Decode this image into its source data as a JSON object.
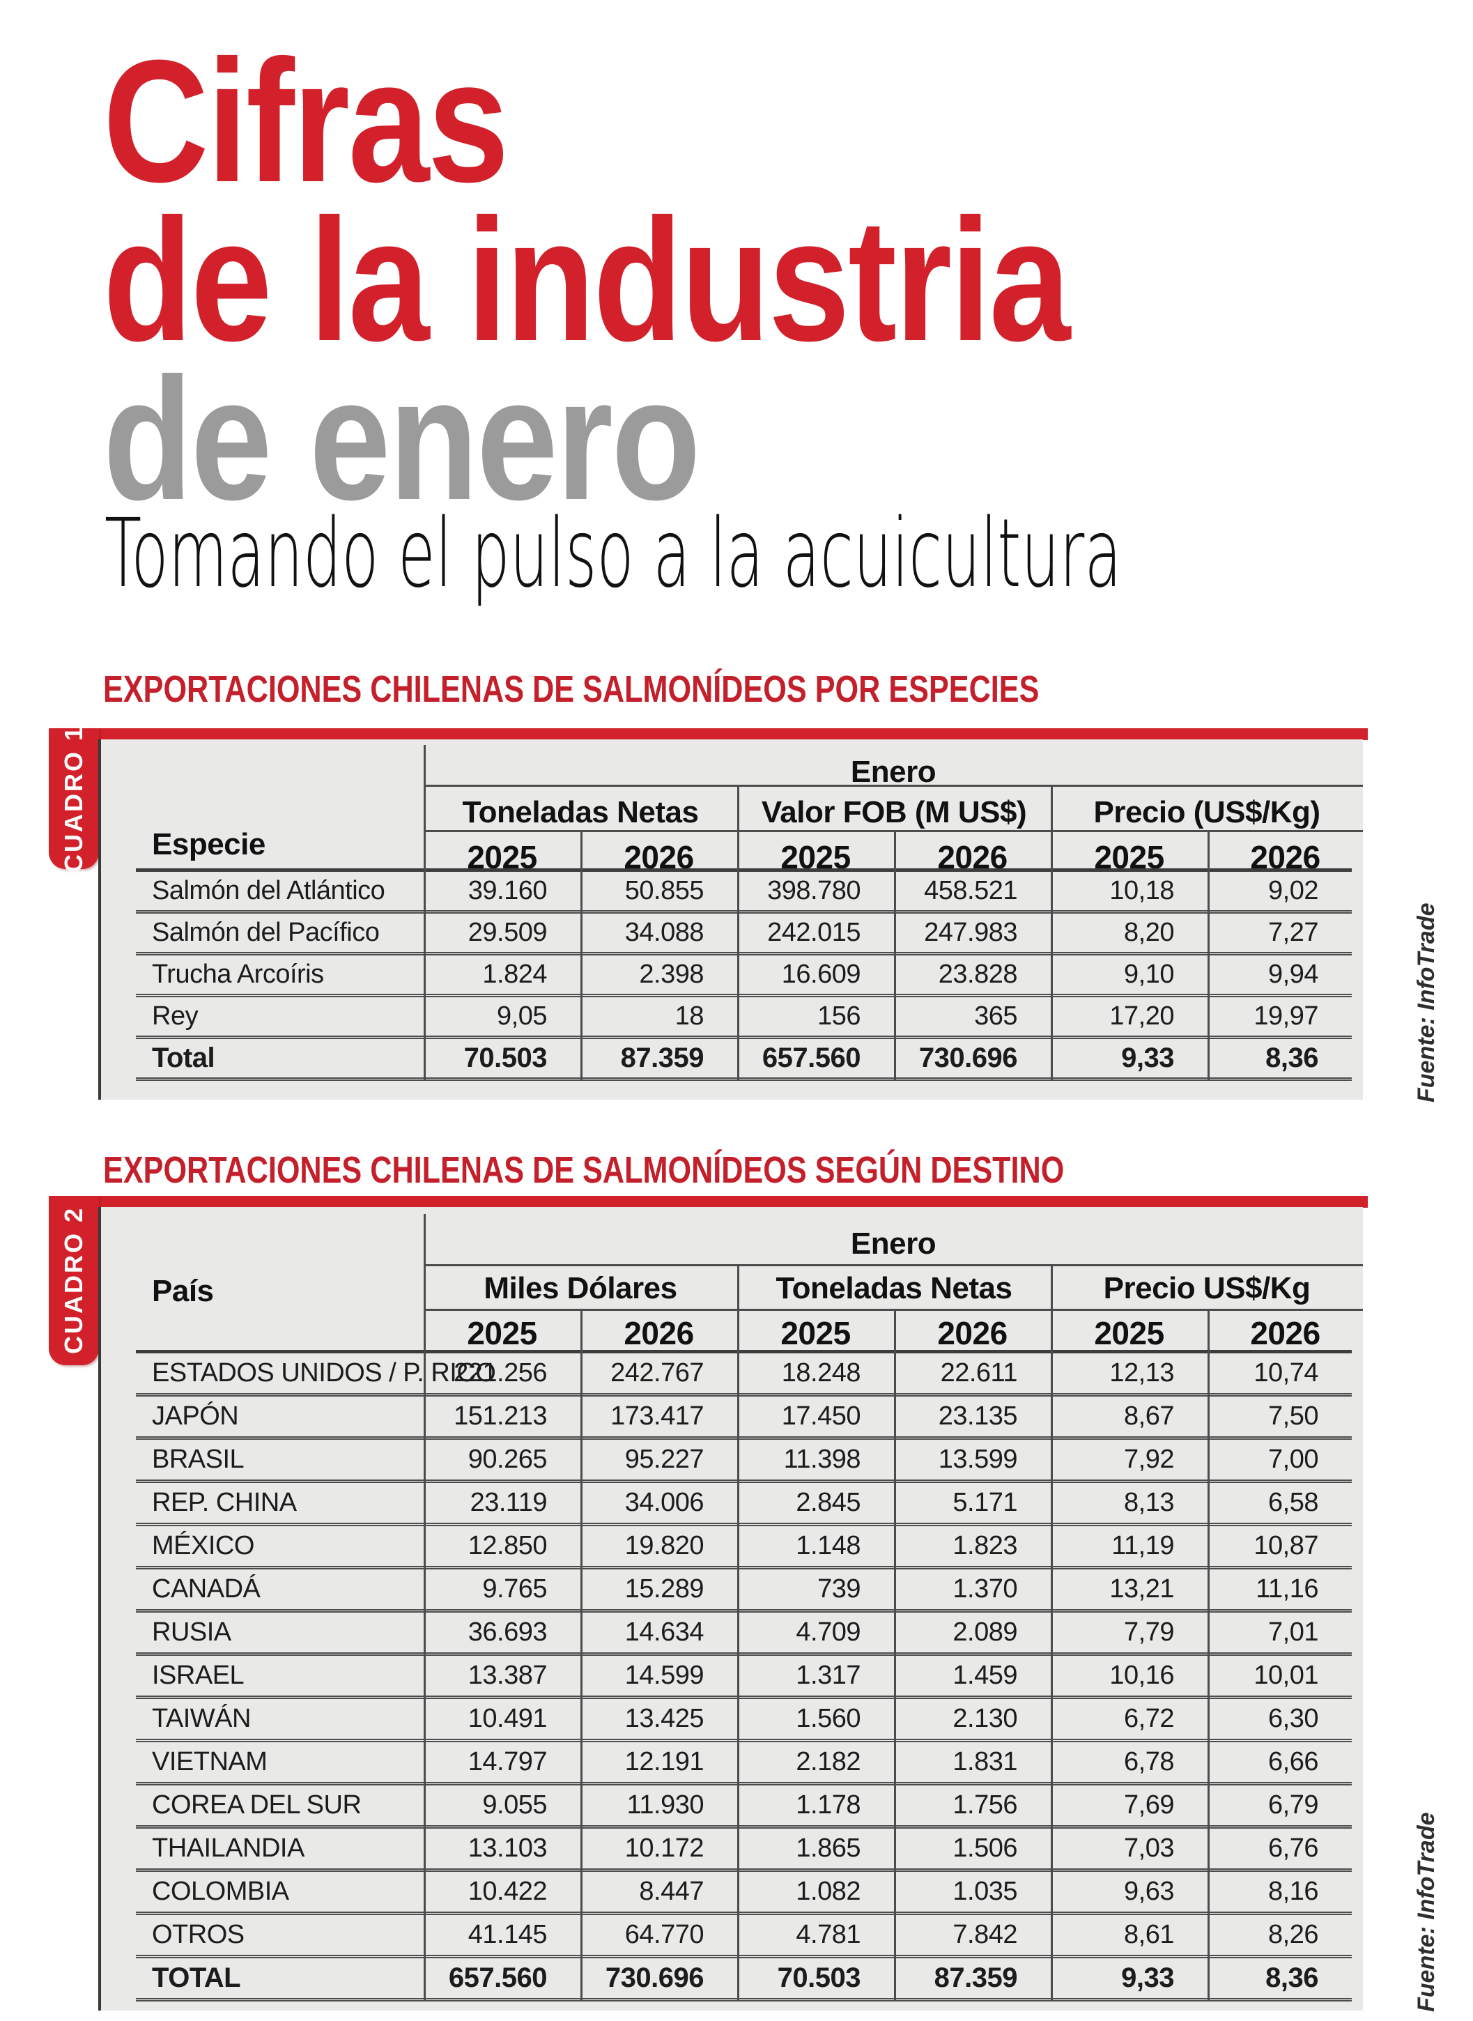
{
  "title": {
    "line1": "Cifras",
    "line2": "de la industria",
    "line3": "de enero",
    "subtitle": "Tomando el pulso a la acuicultura"
  },
  "colors": {
    "accent_red": "#d2212b",
    "title_gray": "#9b9b9b",
    "panel_gray": "#e9e9e8",
    "line_dark": "#4c4c4c"
  },
  "table1": {
    "section_title": "EXPORTACIONES CHILENAS DE SALMONÍDEOS POR ESPECIES",
    "tab_label": "CUADRO 1",
    "source_label": "Fuente: InfoTrade",
    "period_header": "Enero",
    "row_header": "Especie",
    "groups": [
      "Toneladas Netas",
      "Valor FOB (M US$)",
      "Precio (US$/Kg)"
    ],
    "years": [
      "2025",
      "2026",
      "2025",
      "2026",
      "2025",
      "2026"
    ],
    "rows": [
      {
        "label": "Salmón del Atlántico",
        "values": [
          "39.160",
          "50.855",
          "398.780",
          "458.521",
          "10,18",
          "9,02"
        ]
      },
      {
        "label": "Salmón del Pacífico",
        "values": [
          "29.509",
          "34.088",
          "242.015",
          "247.983",
          "8,20",
          "7,27"
        ]
      },
      {
        "label": "Trucha Arcoíris",
        "values": [
          "1.824",
          "2.398",
          "16.609",
          "23.828",
          "9,10",
          "9,94"
        ]
      },
      {
        "label": "Rey",
        "values": [
          "9,05",
          "18",
          "156",
          "365",
          "17,20",
          "19,97"
        ]
      },
      {
        "label": "Total",
        "values": [
          "70.503",
          "87.359",
          "657.560",
          "730.696",
          "9,33",
          "8,36"
        ]
      }
    ]
  },
  "table2": {
    "section_title": "EXPORTACIONES CHILENAS DE SALMONÍDEOS SEGÚN DESTINO",
    "tab_label": "CUADRO 2",
    "source_label": "Fuente: InfoTrade",
    "period_header": "Enero",
    "row_header": "País",
    "groups": [
      "Miles Dólares",
      "Toneladas Netas",
      "Precio US$/Kg"
    ],
    "years": [
      "2025",
      "2026",
      "2025",
      "2026",
      "2025",
      "2026"
    ],
    "rows": [
      {
        "label": "ESTADOS UNIDOS / P. RICO",
        "values": [
          "221.256",
          "242.767",
          "18.248",
          "22.611",
          "12,13",
          "10,74"
        ]
      },
      {
        "label": "JAPÓN",
        "values": [
          "151.213",
          "173.417",
          "17.450",
          "23.135",
          "8,67",
          "7,50"
        ]
      },
      {
        "label": "BRASIL",
        "values": [
          "90.265",
          "95.227",
          "11.398",
          "13.599",
          "7,92",
          "7,00"
        ]
      },
      {
        "label": "REP. CHINA",
        "values": [
          "23.119",
          "34.006",
          "2.845",
          "5.171",
          "8,13",
          "6,58"
        ]
      },
      {
        "label": "MÉXICO",
        "values": [
          "12.850",
          "19.820",
          "1.148",
          "1.823",
          "11,19",
          "10,87"
        ]
      },
      {
        "label": "CANADÁ",
        "values": [
          "9.765",
          "15.289",
          "739",
          "1.370",
          "13,21",
          "11,16"
        ]
      },
      {
        "label": "RUSIA",
        "values": [
          "36.693",
          "14.634",
          "4.709",
          "2.089",
          "7,79",
          "7,01"
        ]
      },
      {
        "label": "ISRAEL",
        "values": [
          "13.387",
          "14.599",
          "1.317",
          "1.459",
          "10,16",
          "10,01"
        ]
      },
      {
        "label": "TAIWÁN",
        "values": [
          "10.491",
          "13.425",
          "1.560",
          "2.130",
          "6,72",
          "6,30"
        ]
      },
      {
        "label": "VIETNAM",
        "values": [
          "14.797",
          "12.191",
          "2.182",
          "1.831",
          "6,78",
          "6,66"
        ]
      },
      {
        "label": "COREA DEL SUR",
        "values": [
          "9.055",
          "11.930",
          "1.178",
          "1.756",
          "7,69",
          "6,79"
        ]
      },
      {
        "label": "THAILANDIA",
        "values": [
          "13.103",
          "10.172",
          "1.865",
          "1.506",
          "7,03",
          "6,76"
        ]
      },
      {
        "label": "COLOMBIA",
        "values": [
          "10.422",
          "8.447",
          "1.082",
          "1.035",
          "9,63",
          "8,16"
        ]
      },
      {
        "label": "OTROS",
        "values": [
          "41.145",
          "64.770",
          "4.781",
          "7.842",
          "8,61",
          "8,26"
        ]
      },
      {
        "label": "TOTAL",
        "values": [
          "657.560",
          "730.696",
          "70.503",
          "87.359",
          "9,33",
          "8,36"
        ]
      }
    ]
  }
}
